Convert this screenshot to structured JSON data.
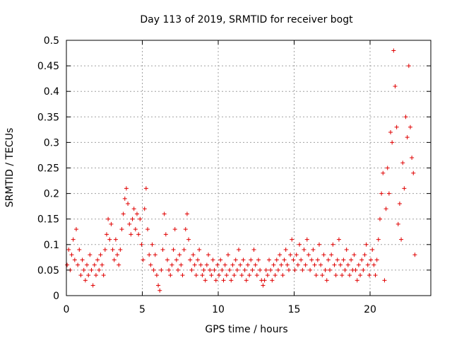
{
  "chart_data": {
    "type": "scatter",
    "title": "Day 113 of 2019, SRMTID for receiver bogt",
    "xlabel": "GPS time / hours",
    "ylabel": "SRMTID / TECUs",
    "xlim": [
      0,
      24
    ],
    "ylim": [
      0,
      0.5
    ],
    "xticks": [
      0,
      5,
      10,
      15,
      20
    ],
    "xtick_labels": [
      "0",
      "5",
      "10",
      "15",
      "20"
    ],
    "yticks": [
      0,
      0.05,
      0.1,
      0.15,
      0.2,
      0.25,
      0.3,
      0.35,
      0.4,
      0.45,
      0.5
    ],
    "ytick_labels": [
      "0",
      "0.05",
      "0.1",
      "0.15",
      "0.2",
      "0.25",
      "0.3",
      "0.35",
      "0.4",
      "0.45",
      "0.5"
    ],
    "grid": true,
    "marker": "plus",
    "series": [
      {
        "name": "SRMTID",
        "color": "#e00000",
        "points": [
          [
            0.05,
            0.06
          ],
          [
            0.15,
            0.09
          ],
          [
            0.25,
            0.05
          ],
          [
            0.35,
            0.08
          ],
          [
            0.45,
            0.11
          ],
          [
            0.55,
            0.07
          ],
          [
            0.65,
            0.13
          ],
          [
            0.75,
            0.06
          ],
          [
            0.85,
            0.09
          ],
          [
            0.95,
            0.04
          ],
          [
            1.05,
            0.07
          ],
          [
            1.15,
            0.05
          ],
          [
            1.25,
            0.03
          ],
          [
            1.35,
            0.06
          ],
          [
            1.45,
            0.04
          ],
          [
            1.55,
            0.08
          ],
          [
            1.65,
            0.05
          ],
          [
            1.75,
            0.02
          ],
          [
            1.85,
            0.06
          ],
          [
            1.95,
            0.04
          ],
          [
            2.05,
            0.07
          ],
          [
            2.15,
            0.05
          ],
          [
            2.25,
            0.08
          ],
          [
            2.35,
            0.06
          ],
          [
            2.45,
            0.04
          ],
          [
            2.55,
            0.09
          ],
          [
            2.65,
            0.12
          ],
          [
            2.75,
            0.15
          ],
          [
            2.85,
            0.11
          ],
          [
            2.95,
            0.14
          ],
          [
            3.05,
            0.09
          ],
          [
            3.15,
            0.07
          ],
          [
            3.25,
            0.11
          ],
          [
            3.35,
            0.08
          ],
          [
            3.45,
            0.06
          ],
          [
            3.55,
            0.09
          ],
          [
            3.65,
            0.13
          ],
          [
            3.75,
            0.16
          ],
          [
            3.85,
            0.19
          ],
          [
            3.95,
            0.21
          ],
          [
            4.05,
            0.18
          ],
          [
            4.15,
            0.14
          ],
          [
            4.25,
            0.12
          ],
          [
            4.35,
            0.15
          ],
          [
            4.45,
            0.17
          ],
          [
            4.55,
            0.13
          ],
          [
            4.65,
            0.16
          ],
          [
            4.75,
            0.12
          ],
          [
            4.85,
            0.15
          ],
          [
            4.95,
            0.1
          ],
          [
            5.05,
            0.07
          ],
          [
            5.15,
            0.17
          ],
          [
            5.25,
            0.21
          ],
          [
            5.35,
            0.13
          ],
          [
            5.45,
            0.08
          ],
          [
            5.55,
            0.06
          ],
          [
            5.65,
            0.1
          ],
          [
            5.75,
            0.05
          ],
          [
            5.85,
            0.08
          ],
          [
            5.95,
            0.04
          ],
          [
            6.05,
            0.02
          ],
          [
            6.15,
            0.01
          ],
          [
            6.25,
            0.05
          ],
          [
            6.35,
            0.09
          ],
          [
            6.45,
            0.16
          ],
          [
            6.55,
            0.12
          ],
          [
            6.65,
            0.07
          ],
          [
            6.75,
            0.05
          ],
          [
            6.85,
            0.04
          ],
          [
            6.95,
            0.06
          ],
          [
            7.05,
            0.09
          ],
          [
            7.15,
            0.13
          ],
          [
            7.25,
            0.07
          ],
          [
            7.35,
            0.05
          ],
          [
            7.45,
            0.08
          ],
          [
            7.55,
            0.06
          ],
          [
            7.65,
            0.04
          ],
          [
            7.75,
            0.09
          ],
          [
            7.85,
            0.13
          ],
          [
            7.95,
            0.16
          ],
          [
            8.05,
            0.11
          ],
          [
            8.15,
            0.07
          ],
          [
            8.25,
            0.05
          ],
          [
            8.35,
            0.08
          ],
          [
            8.45,
            0.06
          ],
          [
            8.55,
            0.04
          ],
          [
            8.65,
            0.07
          ],
          [
            8.75,
            0.09
          ],
          [
            8.85,
            0.06
          ],
          [
            8.95,
            0.04
          ],
          [
            9.05,
            0.05
          ],
          [
            9.15,
            0.03
          ],
          [
            9.25,
            0.06
          ],
          [
            9.35,
            0.08
          ],
          [
            9.45,
            0.05
          ],
          [
            9.55,
            0.04
          ],
          [
            9.65,
            0.07
          ],
          [
            9.75,
            0.05
          ],
          [
            9.85,
            0.03
          ],
          [
            9.95,
            0.06
          ],
          [
            10.05,
            0.04
          ],
          [
            10.15,
            0.07
          ],
          [
            10.25,
            0.05
          ],
          [
            10.35,
            0.03
          ],
          [
            10.45,
            0.06
          ],
          [
            10.55,
            0.04
          ],
          [
            10.65,
            0.08
          ],
          [
            10.75,
            0.05
          ],
          [
            10.85,
            0.03
          ],
          [
            10.95,
            0.06
          ],
          [
            11.05,
            0.04
          ],
          [
            11.15,
            0.07
          ],
          [
            11.25,
            0.05
          ],
          [
            11.35,
            0.09
          ],
          [
            11.45,
            0.06
          ],
          [
            11.55,
            0.04
          ],
          [
            11.65,
            0.07
          ],
          [
            11.75,
            0.05
          ],
          [
            11.85,
            0.03
          ],
          [
            11.95,
            0.06
          ],
          [
            12.05,
            0.04
          ],
          [
            12.15,
            0.07
          ],
          [
            12.25,
            0.05
          ],
          [
            12.35,
            0.09
          ],
          [
            12.45,
            0.06
          ],
          [
            12.55,
            0.04
          ],
          [
            12.65,
            0.07
          ],
          [
            12.75,
            0.05
          ],
          [
            12.85,
            0.03
          ],
          [
            12.95,
            0.02
          ],
          [
            13.05,
            0.03
          ],
          [
            13.15,
            0.05
          ],
          [
            13.25,
            0.04
          ],
          [
            13.35,
            0.07
          ],
          [
            13.45,
            0.05
          ],
          [
            13.55,
            0.03
          ],
          [
            13.65,
            0.06
          ],
          [
            13.75,
            0.04
          ],
          [
            13.85,
            0.07
          ],
          [
            13.95,
            0.05
          ],
          [
            14.05,
            0.08
          ],
          [
            14.15,
            0.06
          ],
          [
            14.25,
            0.04
          ],
          [
            14.35,
            0.07
          ],
          [
            14.45,
            0.09
          ],
          [
            14.55,
            0.06
          ],
          [
            14.65,
            0.05
          ],
          [
            14.75,
            0.08
          ],
          [
            14.85,
            0.11
          ],
          [
            14.95,
            0.07
          ],
          [
            15.05,
            0.05
          ],
          [
            15.15,
            0.08
          ],
          [
            15.25,
            0.06
          ],
          [
            15.35,
            0.1
          ],
          [
            15.45,
            0.07
          ],
          [
            15.55,
            0.05
          ],
          [
            15.65,
            0.09
          ],
          [
            15.75,
            0.06
          ],
          [
            15.85,
            0.11
          ],
          [
            15.95,
            0.08
          ],
          [
            16.05,
            0.05
          ],
          [
            16.15,
            0.07
          ],
          [
            16.25,
            0.09
          ],
          [
            16.35,
            0.06
          ],
          [
            16.45,
            0.04
          ],
          [
            16.55,
            0.07
          ],
          [
            16.65,
            0.1
          ],
          [
            16.75,
            0.06
          ],
          [
            16.85,
            0.04
          ],
          [
            16.95,
            0.08
          ],
          [
            17.05,
            0.05
          ],
          [
            17.15,
            0.03
          ],
          [
            17.25,
            0.07
          ],
          [
            17.35,
            0.05
          ],
          [
            17.45,
            0.08
          ],
          [
            17.55,
            0.1
          ],
          [
            17.65,
            0.06
          ],
          [
            17.75,
            0.04
          ],
          [
            17.85,
            0.07
          ],
          [
            17.95,
            0.11
          ],
          [
            18.05,
            0.06
          ],
          [
            18.15,
            0.04
          ],
          [
            18.25,
            0.07
          ],
          [
            18.35,
            0.05
          ],
          [
            18.45,
            0.09
          ],
          [
            18.55,
            0.06
          ],
          [
            18.65,
            0.04
          ],
          [
            18.75,
            0.07
          ],
          [
            18.85,
            0.05
          ],
          [
            18.95,
            0.08
          ],
          [
            19.05,
            0.05
          ],
          [
            19.15,
            0.03
          ],
          [
            19.25,
            0.06
          ],
          [
            19.35,
            0.04
          ],
          [
            19.45,
            0.07
          ],
          [
            19.55,
            0.05
          ],
          [
            19.65,
            0.08
          ],
          [
            19.75,
            0.1
          ],
          [
            19.85,
            0.06
          ],
          [
            19.95,
            0.04
          ],
          [
            20.05,
            0.07
          ],
          [
            20.15,
            0.09
          ],
          [
            20.25,
            0.06
          ],
          [
            20.35,
            0.04
          ],
          [
            20.45,
            0.07
          ],
          [
            20.55,
            0.11
          ],
          [
            20.65,
            0.15
          ],
          [
            20.75,
            0.2
          ],
          [
            20.85,
            0.24
          ],
          [
            20.95,
            0.03
          ],
          [
            21.05,
            0.17
          ],
          [
            21.15,
            0.25
          ],
          [
            21.25,
            0.2
          ],
          [
            21.35,
            0.32
          ],
          [
            21.45,
            0.3
          ],
          [
            21.55,
            0.48
          ],
          [
            21.65,
            0.41
          ],
          [
            21.75,
            0.33
          ],
          [
            21.85,
            0.14
          ],
          [
            21.95,
            0.18
          ],
          [
            22.05,
            0.11
          ],
          [
            22.15,
            0.26
          ],
          [
            22.25,
            0.21
          ],
          [
            22.35,
            0.35
          ],
          [
            22.45,
            0.31
          ],
          [
            22.55,
            0.45
          ],
          [
            22.65,
            0.33
          ],
          [
            22.75,
            0.27
          ],
          [
            22.85,
            0.24
          ],
          [
            22.95,
            0.08
          ]
        ]
      }
    ]
  }
}
